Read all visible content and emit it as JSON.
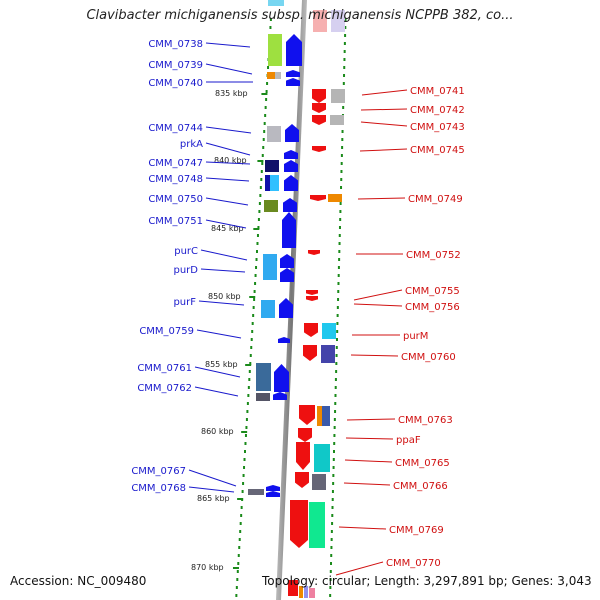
{
  "title": "Clavibacter michiganensis subsp. michiganensis NCPPB 382, co...",
  "footer": {
    "accession": "Accession: NC_009480",
    "topology": "Topology: circular; Length: 3,297,891 bp; Genes: 3,043"
  },
  "colors": {
    "left_label": "#1a1acc",
    "right_label": "#d01010",
    "axis": "#888888",
    "tick": "#1a8a1a"
  },
  "kbp_labels": [
    "835 kbp",
    "840 kbp",
    "845 kbp",
    "850 kbp",
    "855 kbp",
    "860 kbp",
    "865 kbp",
    "870 kbp"
  ],
  "left_genes": [
    "CMM_0738",
    "CMM_0739",
    "CMM_0740",
    "CMM_0744",
    "prkA",
    "CMM_0747",
    "CMM_0748",
    "CMM_0750",
    "CMM_0751",
    "purC",
    "purD",
    "purF",
    "CMM_0759",
    "CMM_0761",
    "CMM_0762",
    "CMM_0767",
    "CMM_0768"
  ],
  "right_genes": [
    "CMM_0741",
    "CMM_0742",
    "CMM_0743",
    "CMM_0745",
    "CMM_0749",
    "CMM_0752",
    "CMM_0755",
    "CMM_0756",
    "purM",
    "CMM_0760",
    "CMM_0763",
    "ppaF",
    "CMM_0765",
    "CMM_0766",
    "CMM_0769",
    "CMM_0770"
  ]
}
